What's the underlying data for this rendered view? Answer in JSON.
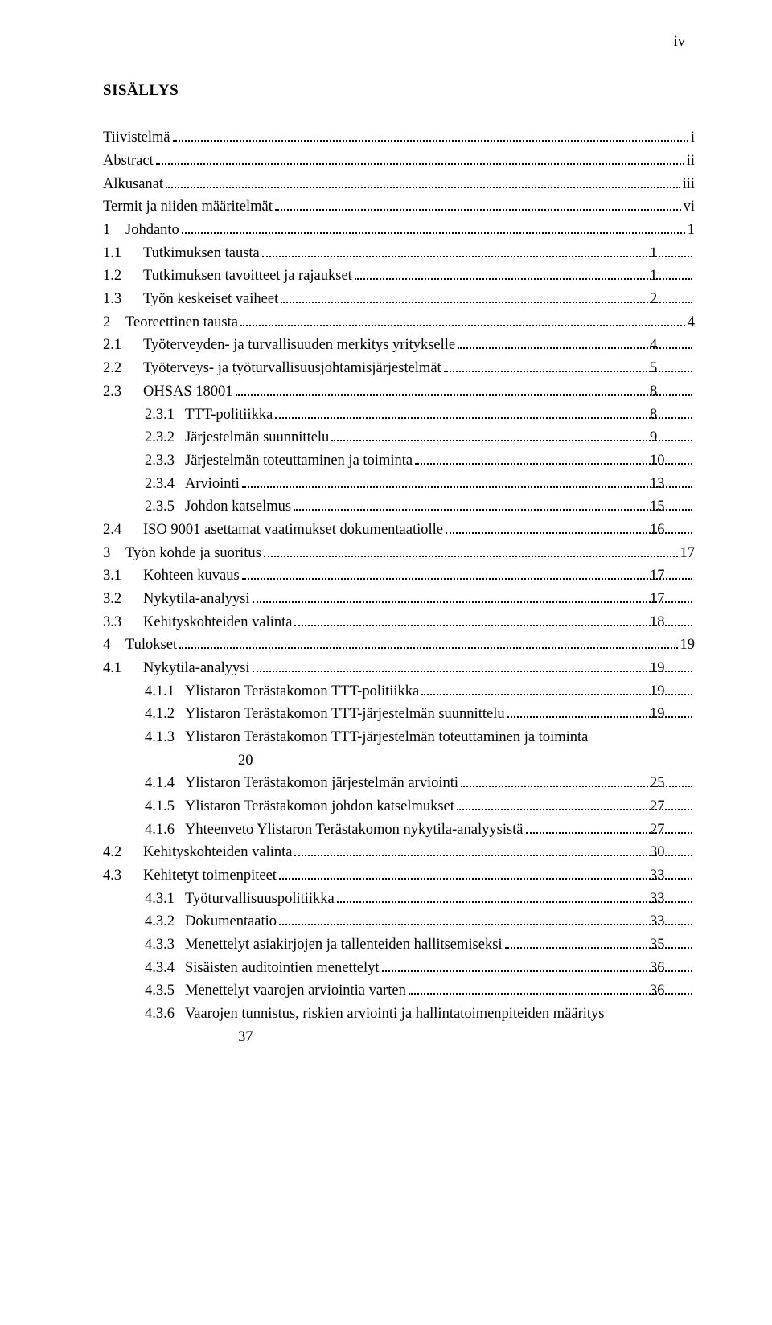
{
  "page_number_label": "iv",
  "heading": "SISÄLLYS",
  "font": {
    "family": "Times New Roman",
    "size_pt": 12,
    "color": "#000000"
  },
  "background_color": "#ffffff",
  "toc": [
    {
      "level": "a",
      "label": "Tiivistelmä",
      "page": "i"
    },
    {
      "level": "a",
      "label": "Abstract",
      "page": "ii"
    },
    {
      "level": "a",
      "label": "Alkusanat",
      "page": "iii"
    },
    {
      "level": "a",
      "label": "Termit ja niiden määritelmät",
      "page": "vi"
    },
    {
      "level": "a",
      "top_num": "1",
      "label": "Johdanto",
      "page": "1"
    },
    {
      "level": "b",
      "num": "1.1",
      "label": "Tutkimuksen tausta",
      "page": "1"
    },
    {
      "level": "b",
      "num": "1.2",
      "label": "Tutkimuksen tavoitteet ja rajaukset",
      "page": "1"
    },
    {
      "level": "b",
      "num": "1.3",
      "label": "Työn keskeiset vaiheet",
      "page": "2"
    },
    {
      "level": "a",
      "top_num": "2",
      "label": "Teoreettinen tausta",
      "page": "4"
    },
    {
      "level": "b",
      "num": "2.1",
      "label": "Työterveyden- ja turvallisuuden merkitys yritykselle",
      "page": "4"
    },
    {
      "level": "b",
      "num": "2.2",
      "label": "Työterveys- ja työturvallisuusjohtamisjärjestelmät",
      "page": "5"
    },
    {
      "level": "b",
      "num": "2.3",
      "label": "OHSAS 18001",
      "page": "8"
    },
    {
      "level": "c",
      "num": "2.3.1",
      "label": "TTT-politiikka",
      "page": "8"
    },
    {
      "level": "c",
      "num": "2.3.2",
      "label": "Järjestelmän suunnittelu",
      "page": "9"
    },
    {
      "level": "c",
      "num": "2.3.3",
      "label": "Järjestelmän toteuttaminen ja toiminta",
      "page": "10"
    },
    {
      "level": "c",
      "num": "2.3.4",
      "label": "Arviointi",
      "page": "13"
    },
    {
      "level": "c",
      "num": "2.3.5",
      "label": "Johdon katselmus",
      "page": "15"
    },
    {
      "level": "b",
      "num": "2.4",
      "label": "ISO 9001 asettamat vaatimukset dokumentaatiolle",
      "page": "16"
    },
    {
      "level": "a",
      "top_num": "3",
      "label": "Työn kohde ja suoritus",
      "page": "17"
    },
    {
      "level": "b",
      "num": "3.1",
      "label": "Kohteen kuvaus",
      "page": "17"
    },
    {
      "level": "b",
      "num": "3.2",
      "label": "Nykytila-analyysi",
      "page": "17"
    },
    {
      "level": "b",
      "num": "3.3",
      "label": "Kehityskohteiden valinta",
      "page": "18"
    },
    {
      "level": "a",
      "top_num": "4",
      "label": "Tulokset",
      "page": "19"
    },
    {
      "level": "b",
      "num": "4.1",
      "label": "Nykytila-analyysi",
      "page": "19"
    },
    {
      "level": "c",
      "num": "4.1.1",
      "label": "Ylistaron Terästakomon TTT-politiikka",
      "page": "19"
    },
    {
      "level": "c",
      "num": "4.1.2",
      "label": "Ylistaron Terästakomon TTT-järjestelmän suunnittelu",
      "page": "19"
    },
    {
      "level": "c",
      "num": "4.1.3",
      "label": "Ylistaron Terästakomon TTT-järjestelmän toteuttaminen ja toiminta",
      "page": "",
      "cont": "20"
    },
    {
      "level": "c",
      "num": "4.1.4",
      "label": "Ylistaron Terästakomon järjestelmän arviointi",
      "page": "25"
    },
    {
      "level": "c",
      "num": "4.1.5",
      "label": "Ylistaron Terästakomon johdon katselmukset",
      "page": "27"
    },
    {
      "level": "c",
      "num": "4.1.6",
      "label": "Yhteenveto Ylistaron Terästakomon nykytila-analyysistä",
      "page": "27"
    },
    {
      "level": "b",
      "num": "4.2",
      "label": "Kehityskohteiden valinta",
      "page": "30"
    },
    {
      "level": "b",
      "num": "4.3",
      "label": "Kehitetyt toimenpiteet",
      "page": "33"
    },
    {
      "level": "c",
      "num": "4.3.1",
      "label": "Työturvallisuuspolitiikka",
      "page": "33"
    },
    {
      "level": "c",
      "num": "4.3.2",
      "label": "Dokumentaatio",
      "page": "33"
    },
    {
      "level": "c",
      "num": "4.3.3",
      "label": "Menettelyt asiakirjojen ja tallenteiden hallitsemiseksi",
      "page": "35"
    },
    {
      "level": "c",
      "num": "4.3.4",
      "label": "Sisäisten auditointien menettelyt",
      "page": "36"
    },
    {
      "level": "c",
      "num": "4.3.5",
      "label": "Menettelyt vaarojen arviointia varten",
      "page": "36"
    },
    {
      "level": "c",
      "num": "4.3.6",
      "label": "Vaarojen tunnistus, riskien arviointi ja hallintatoimenpiteiden määritys",
      "page": "",
      "cont": "37"
    }
  ]
}
